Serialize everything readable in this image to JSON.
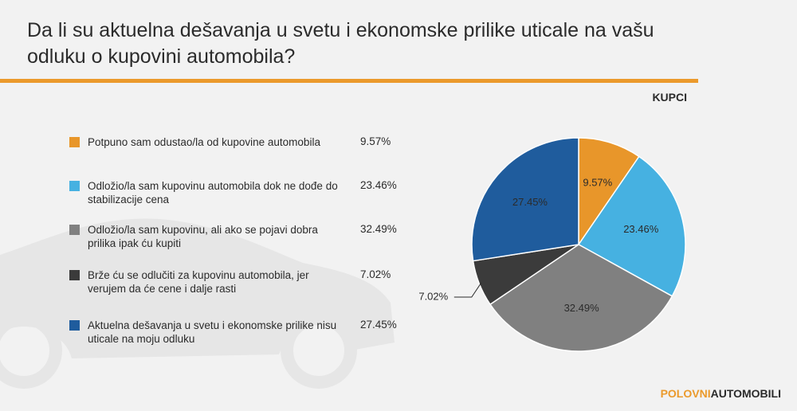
{
  "chart_data": {
    "type": "pie",
    "title": "Da li su aktuelna dešavanja u svetu i ekonomske prilike uticale na vašu odluku o kupovini automobila?",
    "subtitle": "KUPCI",
    "categories": [
      "Potpuno sam odustao/la od kupovine automobila",
      "Odložio/la sam kupovinu automobila dok ne dođe do stabilizacije cena",
      "Odložio/la sam kupovinu, ali ako se pojavi dobra prilika ipak ću kupiti",
      "Brže ću se odlučiti za kupovinu automobila, jer verujem da će cene i dalje rasti",
      "Aktuelna dešavanja u svetu i ekonomske prilike nisu uticale na moju odluku"
    ],
    "values": [
      9.57,
      23.46,
      32.49,
      7.02,
      27.45
    ],
    "value_labels": [
      "9.57%",
      "23.46%",
      "32.49%",
      "7.02%",
      "27.45%"
    ],
    "colors": [
      "#e8962a",
      "#46b1e1",
      "#808080",
      "#3b3b3b",
      "#1f5c9d"
    ]
  },
  "logo": [
    "POLOVNI",
    "AUTOMOBILI"
  ]
}
